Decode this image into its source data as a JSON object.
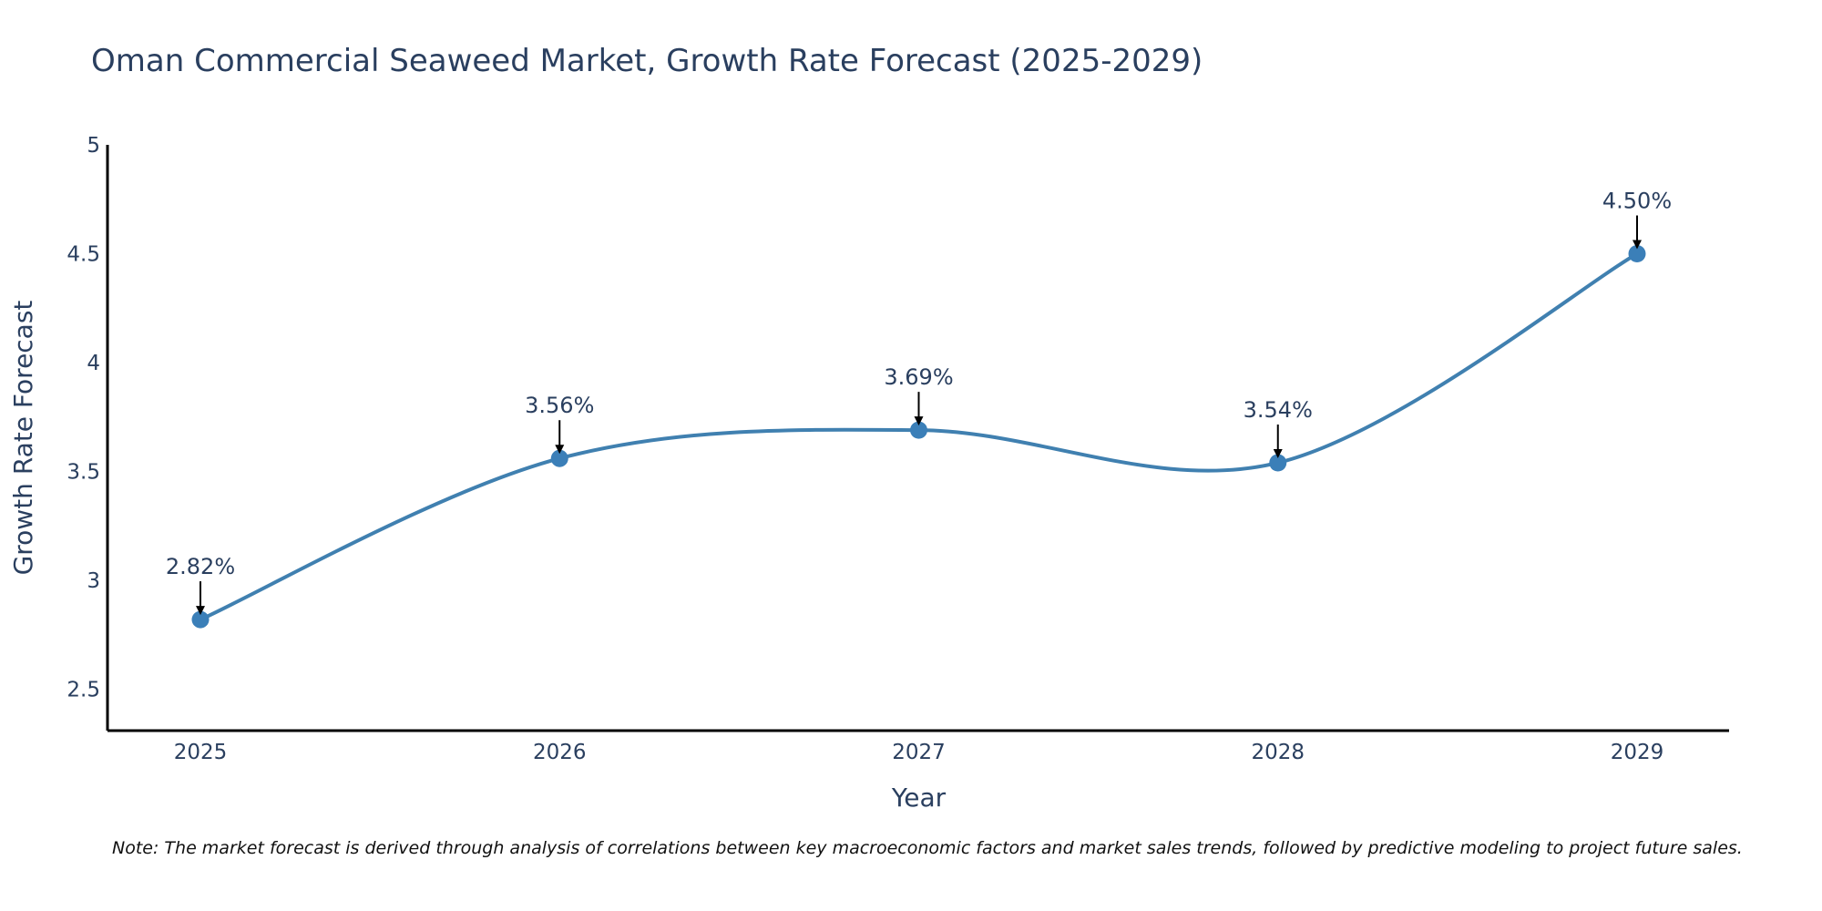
{
  "chart_data": {
    "type": "line",
    "title": "Oman Commercial Seaweed Market, Growth Rate Forecast (2025-2029)",
    "xlabel": "Year",
    "ylabel": "Growth Rate Forecast",
    "categories": [
      "2025",
      "2026",
      "2027",
      "2028",
      "2029"
    ],
    "series": [
      {
        "name": "Growth Rate Forecast",
        "values": [
          2.82,
          3.56,
          3.69,
          3.54,
          4.5
        ]
      }
    ],
    "data_labels": [
      "2.82%",
      "3.56%",
      "3.69%",
      "3.54%",
      "4.50%"
    ],
    "yticks": [
      2.5,
      3,
      3.5,
      4,
      4.5,
      5
    ],
    "ytick_labels": [
      "2.5",
      "3",
      "3.5",
      "4",
      "4.5",
      "5"
    ],
    "ylim": [
      2.31,
      5.0
    ],
    "grid": false,
    "line_shape": "spline",
    "colors": {
      "line": "#4080b0",
      "marker": "#3b7fb8",
      "arrow": "#000000",
      "text": "#2a3f5f",
      "axis": "#000000"
    }
  },
  "note": "Note: The market forecast is derived through analysis of correlations between key macroeconomic factors and market sales trends, followed by predictive modeling to project future sales."
}
